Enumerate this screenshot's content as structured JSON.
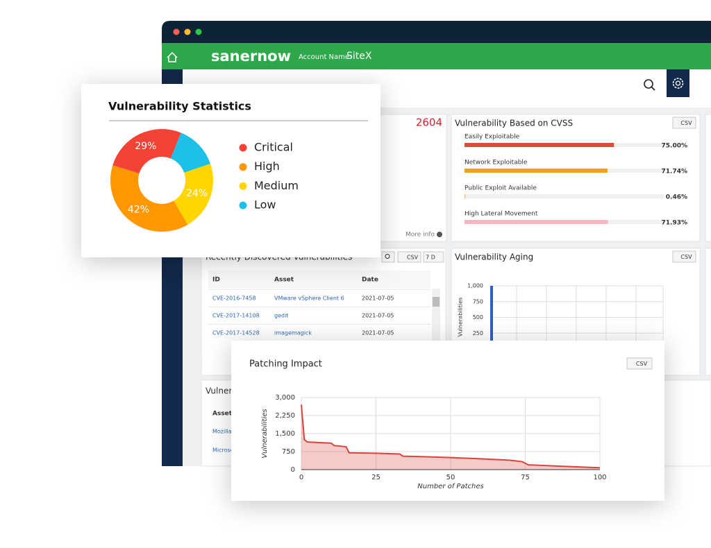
{
  "window": {
    "brand": "sanernow",
    "account_label": "Account Name",
    "account_name": "SiteX"
  },
  "summary_card": {
    "count": 2604,
    "more_info": "More info"
  },
  "recent_table": {
    "title": "Recently Discovered Vulnerabilities",
    "export": "CSV",
    "filter": "7 D",
    "columns": [
      "ID",
      "Asset",
      "Date"
    ],
    "rows": [
      [
        "CVE-2016-7458",
        "VMware vSphere Client 6",
        "2021-07-05"
      ],
      [
        "CVE-2017-14108",
        "gedit",
        "2021-07-05"
      ],
      [
        "CVE-2017-14528",
        "imagemagick",
        "2021-07-05"
      ]
    ]
  },
  "bottom_card": {
    "title": "Vulnera",
    "column": "Asset",
    "rows": [
      "Mozilla",
      "Microso"
    ]
  },
  "chart_data": [
    {
      "type": "pie",
      "title": "Vulnerability Statistics",
      "categories": [
        "Critical",
        "High",
        "Medium",
        "Low"
      ],
      "values": [
        29,
        42,
        24,
        15
      ],
      "value_labels": [
        "29%",
        "42%",
        "24%",
        null
      ],
      "colors": [
        "#f44336",
        "#ff9800",
        "#ffd600",
        "#1ec0e8"
      ]
    },
    {
      "type": "hbar",
      "title": "Vulnerability Based on CVSS",
      "export": "CSV",
      "categories": [
        "Easily Exploitable",
        "Network Exploitable",
        "Public Exploit Available",
        "High Lateral Movement"
      ],
      "values": [
        75.0,
        71.74,
        0.46,
        71.93
      ],
      "value_labels": [
        "75.00%",
        "71.74%",
        "0.46%",
        "71.93%"
      ],
      "colors": [
        "#e04b37",
        "#f5a20a",
        "#f2d600",
        "#f4b6c2"
      ],
      "xlim": [
        0,
        100
      ]
    },
    {
      "type": "bar",
      "title": "Vulnerability Aging",
      "export": "CSV",
      "ylabel": "Vulnerabilities",
      "categories": [
        null
      ],
      "values": [
        1000
      ],
      "color": "#2f5fc4",
      "ylim": [
        0,
        1000
      ],
      "yticks": [
        250,
        500,
        750,
        {
          "value": 1000,
          "label": "1,000"
        }
      ],
      "grid": true
    },
    {
      "type": "area",
      "title": "Patching Impact",
      "export": "CSV",
      "xlabel": "Number of Patches",
      "ylabel": "Vulnerabilities",
      "x": [
        0,
        1,
        2,
        10,
        11,
        15,
        16,
        25,
        33,
        34,
        40,
        50,
        60,
        70,
        74,
        76,
        85,
        95,
        100
      ],
      "values": [
        2700,
        1250,
        1150,
        1100,
        1000,
        950,
        700,
        680,
        650,
        560,
        540,
        500,
        450,
        390,
        330,
        200,
        150,
        100,
        80
      ],
      "color": "#d9433a",
      "xlim": [
        0,
        100
      ],
      "ylim": [
        0,
        3000
      ],
      "xticks": [
        0,
        25,
        50,
        75,
        100
      ],
      "yticks": [
        0,
        750,
        {
          "value": 1500,
          "label": "1,500"
        },
        {
          "value": 2250,
          "label": "2,250"
        },
        {
          "value": 3000,
          "label": "3,000"
        }
      ],
      "grid": true
    }
  ]
}
